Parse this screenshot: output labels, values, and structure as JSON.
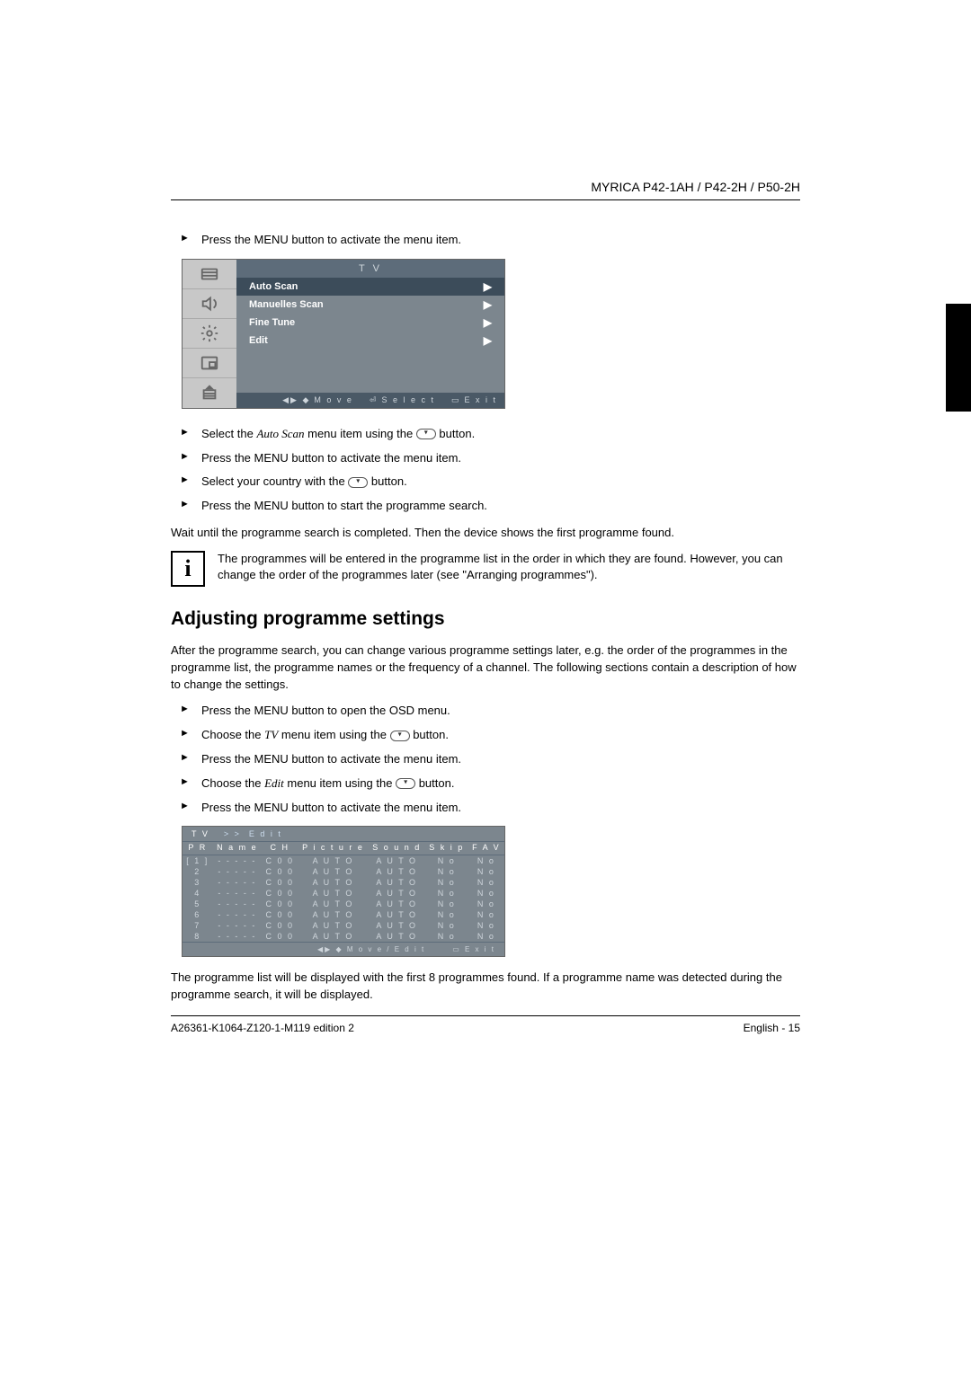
{
  "header": {
    "model": "MYRICA P42-1AH / P42-2H / P50-2H"
  },
  "steps_before_osd1": [
    "Press the MENU button to activate the menu item."
  ],
  "osd1": {
    "title": "T V",
    "bg_color": "#7c868e",
    "iconcol_bg": "#c8c8c8",
    "title_bg": "#5d6c7a",
    "sel_bg": "#3c4c5a",
    "items": [
      {
        "label": "Auto Scan",
        "selected": true
      },
      {
        "label": "Manuelles Scan",
        "selected": false
      },
      {
        "label": "Fine Tune",
        "selected": false
      },
      {
        "label": "Edit",
        "selected": false
      }
    ],
    "footer": {
      "move": "M o v e",
      "select": "S e l e c t",
      "exit": "E x i t"
    }
  },
  "steps_after_osd1": [
    {
      "pre": "Select the ",
      "em": "Auto Scan",
      "post": " menu item using the ",
      "btn": true,
      "tail": " button."
    },
    {
      "pre": "Press the MENU button to activate the menu item."
    },
    {
      "pre": "Select your country with the ",
      "btn": true,
      "tail": " button."
    },
    {
      "pre": "Press the MENU button to start the programme search."
    }
  ],
  "wait_text": "Wait until the programme search is completed. Then the device shows the first programme found.",
  "info_text": "The programmes will be entered in the programme list in the order in which they are found. However, you can change the order of the programmes later (see \"Arranging programmes\").",
  "section_title": "Adjusting programme settings",
  "section_intro": "After the programme search, you can change various programme settings later, e.g. the order of the programmes in the programme list, the programme names or the frequency of a channel. The following sections contain a description of how to change the settings.",
  "steps_section": [
    {
      "pre": "Press the MENU button to open the OSD menu."
    },
    {
      "pre": "Choose the ",
      "em": "TV",
      "post": " menu item using the ",
      "btn": true,
      "tail": " button."
    },
    {
      "pre": "Press the MENU button to activate the menu item."
    },
    {
      "pre": "Choose the ",
      "em": "Edit",
      "post": " menu item using the ",
      "btn": true,
      "tail": " button."
    },
    {
      "pre": "Press the MENU button to activate the menu item."
    }
  ],
  "osd2": {
    "bg_color": "#7c868e",
    "crumb_tv": "T V",
    "crumb_sep": "> >",
    "crumb_page": "E d i t",
    "columns": [
      "P R",
      "N a m e",
      "C H",
      "P i c t u r e",
      "S o u n d",
      "S k i p",
      "F A V"
    ],
    "rows": [
      [
        "[ 1 ]",
        "- - - - -",
        "C 0 0",
        "A U T O",
        "A U T O",
        "N o",
        "N o"
      ],
      [
        "2",
        "- - - - -",
        "C 0 0",
        "A U T O",
        "A U T O",
        "N o",
        "N o"
      ],
      [
        "3",
        "- - - - -",
        "C 0 0",
        "A U T O",
        "A U T O",
        "N o",
        "N o"
      ],
      [
        "4",
        "- - - - -",
        "C 0 0",
        "A U T O",
        "A U T O",
        "N o",
        "N o"
      ],
      [
        "5",
        "- - - - -",
        "C 0 0",
        "A U T O",
        "A U T O",
        "N o",
        "N o"
      ],
      [
        "6",
        "- - - - -",
        "C 0 0",
        "A U T O",
        "A U T O",
        "N o",
        "N o"
      ],
      [
        "7",
        "- - - - -",
        "C 0 0",
        "A U T O",
        "A U T O",
        "N o",
        "N o"
      ],
      [
        "8",
        "- - - - -",
        "C 0 0",
        "A U T O",
        "A U T O",
        "N o",
        "N o"
      ]
    ],
    "footer": {
      "move": "M o v e / E d i t",
      "exit": "E x i t"
    }
  },
  "after_osd2": "The programme list will be displayed with the first 8 programmes found. If a programme name was detected during the programme search, it will be displayed.",
  "footer": {
    "left": "A26361-K1064-Z120-1-M119 edition 2",
    "right": "English - 15"
  }
}
